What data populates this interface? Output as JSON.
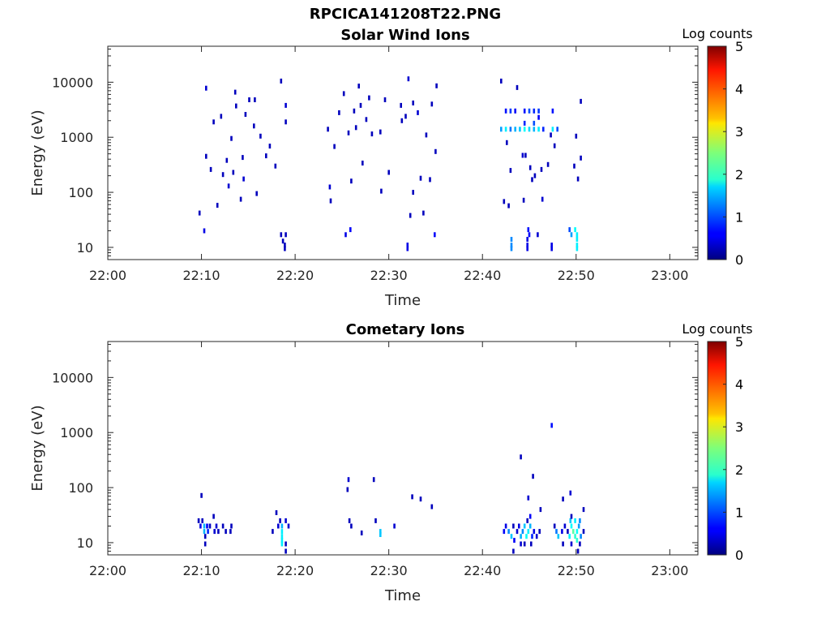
{
  "figure_title": "RPCICA141208T22.PNG",
  "chart_data": [
    {
      "type": "heatmap",
      "title": "Solar Wind Ions",
      "xlabel": "Time",
      "ylabel": "Energy (eV)",
      "x_scale": "time",
      "y_scale": "log",
      "x_range": [
        "22:00",
        "23:03"
      ],
      "y_range": [
        6,
        45000
      ],
      "x_ticks": [
        "22:00",
        "22:10",
        "22:20",
        "22:30",
        "22:40",
        "22:50",
        "23:00"
      ],
      "y_ticks": [
        "10",
        "100",
        "1000",
        "10000"
      ],
      "colorbar": {
        "label": "Log counts",
        "range": [
          0,
          5
        ],
        "ticks": [
          "0",
          "1",
          "2",
          "3",
          "4",
          "5"
        ],
        "colormap": "jet"
      },
      "points": [
        [
          "22:09.8",
          42,
          0.3
        ],
        [
          "22:10.5",
          7800,
          0.4
        ],
        [
          "22:10.5",
          450,
          0.3
        ],
        [
          "22:11.0",
          260,
          0.3
        ],
        [
          "22:11.3",
          1900,
          0.3
        ],
        [
          "22:11.7",
          58,
          0.3
        ],
        [
          "22:12.1",
          2400,
          0.3
        ],
        [
          "22:12.3",
          210,
          0.3
        ],
        [
          "22:12.7",
          380,
          0.3
        ],
        [
          "22:12.9",
          130,
          0.4
        ],
        [
          "22:13.2",
          950,
          0.3
        ],
        [
          "22:13.4",
          230,
          0.3
        ],
        [
          "22:13.6",
          6600,
          0.3
        ],
        [
          "22:13.7",
          3700,
          0.3
        ],
        [
          "22:14.2",
          75,
          0.3
        ],
        [
          "22:14.4",
          430,
          0.3
        ],
        [
          "22:14.5",
          175,
          0.4
        ],
        [
          "22:14.7",
          2600,
          0.3
        ],
        [
          "22:15.1",
          4800,
          0.3
        ],
        [
          "22:15.6",
          1600,
          0.3
        ],
        [
          "22:15.7",
          4800,
          0.3
        ],
        [
          "22:15.9",
          95,
          0.3
        ],
        [
          "22:16.3",
          1050,
          0.3
        ],
        [
          "22:16.9",
          460,
          0.3
        ],
        [
          "22:17.3",
          690,
          0.3
        ],
        [
          "22:17.9",
          300,
          0.3
        ],
        [
          "22:18.5",
          10500,
          0.3
        ],
        [
          "22:19.0",
          3800,
          0.4
        ],
        [
          "22:19.0",
          1900,
          0.3
        ],
        [
          "22:23.5",
          1400,
          0.3
        ],
        [
          "22:23.7",
          125,
          0.4
        ],
        [
          "22:23.8",
          70,
          0.3
        ],
        [
          "22:24.2",
          680,
          0.3
        ],
        [
          "22:24.7",
          2800,
          0.3
        ],
        [
          "22:25.2",
          6200,
          0.3
        ],
        [
          "22:25.7",
          1200,
          0.3
        ],
        [
          "22:26.0",
          160,
          0.3
        ],
        [
          "22:26.3",
          3000,
          0.3
        ],
        [
          "22:26.5",
          1500,
          0.3
        ],
        [
          "22:26.8",
          8500,
          0.3
        ],
        [
          "22:27.0",
          3800,
          0.3
        ],
        [
          "22:27.2",
          340,
          0.3
        ],
        [
          "22:27.6",
          2100,
          0.3
        ],
        [
          "22:27.9",
          5200,
          0.3
        ],
        [
          "22:28.2",
          1150,
          0.3
        ],
        [
          "22:29.1",
          1250,
          0.3
        ],
        [
          "22:29.2",
          105,
          0.3
        ],
        [
          "22:29.6",
          4800,
          0.3
        ],
        [
          "22:30.0",
          230,
          0.3
        ],
        [
          "22:31.3",
          3800,
          0.3
        ],
        [
          "22:31.4",
          2000,
          0.3
        ],
        [
          "22:31.8",
          2400,
          0.3
        ],
        [
          "22:32.1",
          11500,
          0.4
        ],
        [
          "22:32.3",
          38,
          0.3
        ],
        [
          "22:32.6",
          4200,
          0.3
        ],
        [
          "22:32.6",
          100,
          0.3
        ],
        [
          "22:33.1",
          2800,
          0.4
        ],
        [
          "22:33.4",
          180,
          0.3
        ],
        [
          "22:33.7",
          42,
          0.3
        ],
        [
          "22:34.0",
          1100,
          0.3
        ],
        [
          "22:34.4",
          170,
          0.3
        ],
        [
          "22:34.6",
          4000,
          0.3
        ],
        [
          "22:35.0",
          550,
          0.3
        ],
        [
          "22:35.1",
          8600,
          0.3
        ],
        [
          "22:42.0",
          10500,
          0.3
        ],
        [
          "22:42.3",
          68,
          0.3
        ],
        [
          "22:42.6",
          800,
          0.3
        ],
        [
          "22:42.8",
          57,
          0.3
        ],
        [
          "22:43.0",
          250,
          0.3
        ],
        [
          "22:43.7",
          8000,
          0.3
        ],
        [
          "22:44.3",
          470,
          0.4
        ],
        [
          "22:44.4",
          72,
          0.3
        ],
        [
          "22:44.6",
          470,
          0.3
        ],
        [
          "22:45.1",
          280,
          0.3
        ],
        [
          "22:45.3",
          170,
          0.3
        ],
        [
          "22:45.6",
          200,
          0.3
        ],
        [
          "22:46.3",
          260,
          0.3
        ],
        [
          "22:46.4",
          75,
          0.4
        ],
        [
          "22:47.0",
          320,
          0.3
        ],
        [
          "22:47.3",
          1100,
          0.3
        ],
        [
          "22:47.7",
          700,
          0.3
        ],
        [
          "22:49.8",
          300,
          0.3
        ],
        [
          "22:50.0",
          1050,
          0.3
        ],
        [
          "22:50.2",
          175,
          0.3
        ],
        [
          "22:50.5",
          420,
          0.3
        ],
        [
          "22:50.5",
          4500,
          0.3
        ],
        [
          "22:42.5",
          3000,
          0.7
        ],
        [
          "22:43.0",
          3000,
          0.9
        ],
        [
          "22:43.5",
          3000,
          0.6
        ],
        [
          "22:44.5",
          3000,
          0.7
        ],
        [
          "22:45.0",
          3000,
          1.0
        ],
        [
          "22:45.5",
          3000,
          0.8
        ],
        [
          "22:46.0",
          3000,
          0.9
        ],
        [
          "22:47.5",
          3000,
          0.7
        ],
        [
          "22:42.0",
          1400,
          1.4
        ],
        [
          "22:42.5",
          1400,
          1.8
        ],
        [
          "22:43.0",
          1400,
          1.2
        ],
        [
          "22:43.5",
          1400,
          1.5
        ],
        [
          "22:44.0",
          1400,
          1.6
        ],
        [
          "22:44.5",
          1400,
          1.9
        ],
        [
          "22:45.0",
          1400,
          1.7
        ],
        [
          "22:45.5",
          1400,
          1.5
        ],
        [
          "22:46.0",
          1400,
          1.8
        ],
        [
          "22:46.5",
          1400,
          0.8
        ],
        [
          "22:47.5",
          1400,
          1.8
        ],
        [
          "22:48.0",
          1400,
          1.0
        ],
        [
          "22:44.5",
          1800,
          0.8
        ],
        [
          "22:45.5",
          1800,
          1.0
        ],
        [
          "22:46.0",
          2300,
          0.6
        ],
        [
          "22:10.3",
          20,
          0.5
        ],
        [
          "22:18.5",
          17,
          0.3
        ],
        [
          "22:19.0",
          17,
          0.3
        ],
        [
          "22:18.7",
          13,
          0.3
        ],
        [
          "22:18.9",
          11,
          0.3
        ],
        [
          "22:18.9",
          9.5,
          0.3
        ],
        [
          "22:25.4",
          17,
          0.5
        ],
        [
          "22:25.9",
          21,
          0.6
        ],
        [
          "22:32.0",
          11,
          0.5
        ],
        [
          "22:32.0",
          9.5,
          0.5
        ],
        [
          "22:34.9",
          17,
          0.6
        ],
        [
          "22:43.1",
          14,
          1.3
        ],
        [
          "22:43.1",
          11,
          1.3
        ],
        [
          "22:43.1",
          9.5,
          1.3
        ],
        [
          "22:44.9",
          21,
          0.7
        ],
        [
          "22:45.0",
          17,
          0.6
        ],
        [
          "22:44.8",
          14,
          0.5
        ],
        [
          "22:44.8",
          11,
          0.5
        ],
        [
          "22:44.8",
          9.5,
          0.5
        ],
        [
          "22:45.9",
          17,
          0.4
        ],
        [
          "22:47.4",
          11,
          0.5
        ],
        [
          "22:47.4",
          9.5,
          0.5
        ],
        [
          "22:49.3",
          21,
          1.0
        ],
        [
          "22:49.5",
          17,
          1.4
        ],
        [
          "22:49.9",
          21,
          1.9
        ],
        [
          "22:50.1",
          17,
          1.8
        ],
        [
          "22:50.1",
          14,
          1.8
        ],
        [
          "22:50.1",
          11,
          1.8
        ],
        [
          "22:50.1",
          9.5,
          1.8
        ]
      ]
    },
    {
      "type": "heatmap",
      "title": "Cometary Ions",
      "xlabel": "Time",
      "ylabel": "Energy (eV)",
      "x_scale": "time",
      "y_scale": "log",
      "x_range": [
        "22:00",
        "23:03"
      ],
      "y_range": [
        6,
        45000
      ],
      "x_ticks": [
        "22:00",
        "22:10",
        "22:20",
        "22:30",
        "22:40",
        "22:50",
        "23:00"
      ],
      "y_ticks": [
        "10",
        "100",
        "1000",
        "10000"
      ],
      "colorbar": {
        "label": "Log counts",
        "range": [
          0,
          5
        ],
        "ticks": [
          "0",
          "1",
          "2",
          "3",
          "4",
          "5"
        ],
        "colormap": "jet"
      },
      "points": [
        [
          "22:10.0",
          72,
          0.3
        ],
        [
          "22:18.0",
          35,
          0.3
        ],
        [
          "22:25.6",
          92,
          0.3
        ],
        [
          "22:25.7",
          140,
          0.4
        ],
        [
          "22:28.4",
          140,
          0.3
        ],
        [
          "22:32.5",
          68,
          0.3
        ],
        [
          "22:33.4",
          62,
          0.3
        ],
        [
          "22:34.6",
          45,
          0.3
        ],
        [
          "22:44.1",
          360,
          0.3
        ],
        [
          "22:44.9",
          65,
          0.4
        ],
        [
          "22:45.4",
          160,
          0.3
        ],
        [
          "22:46.2",
          40,
          0.3
        ],
        [
          "22:47.4",
          1350,
          0.7
        ],
        [
          "22:48.6",
          62,
          0.3
        ],
        [
          "22:49.4",
          80,
          0.4
        ],
        [
          "22:50.8",
          40,
          0.3
        ],
        [
          "22:09.7",
          25,
          0.3
        ],
        [
          "22:10.1",
          25,
          0.3
        ],
        [
          "22:09.9",
          20,
          0.5
        ],
        [
          "22:10.3",
          20,
          1.5
        ],
        [
          "22:10.6",
          20,
          0.6
        ],
        [
          "22:10.9",
          20,
          0.3
        ],
        [
          "22:10.3",
          16,
          1.5
        ],
        [
          "22:10.7",
          16,
          0.8
        ],
        [
          "22:11.4",
          16,
          0.4
        ],
        [
          "22:11.8",
          16,
          0.3
        ],
        [
          "22:12.6",
          16,
          0.3
        ],
        [
          "22:11.6",
          20,
          0.4
        ],
        [
          "22:12.3",
          20,
          0.3
        ],
        [
          "22:13.2",
          20,
          0.3
        ],
        [
          "22:10.4",
          13,
          0.3
        ],
        [
          "22:11.3",
          30,
          0.3
        ],
        [
          "22:10.4",
          9.5,
          0.3
        ],
        [
          "22:13.1",
          16,
          0.3
        ],
        [
          "22:17.6",
          16,
          0.3
        ],
        [
          "22:18.2",
          20,
          0.4
        ],
        [
          "22:18.6",
          20,
          1.5
        ],
        [
          "22:18.6",
          16,
          1.8
        ],
        [
          "22:18.6",
          13,
          1.8
        ],
        [
          "22:18.6",
          11,
          1.8
        ],
        [
          "22:18.6",
          9.5,
          1.8
        ],
        [
          "22:18.4",
          25,
          0.3
        ],
        [
          "22:19.0",
          25,
          0.4
        ],
        [
          "22:19.0",
          9.5,
          0.3
        ],
        [
          "22:19.0",
          7,
          0.3
        ],
        [
          "22:19.3",
          20,
          0.4
        ],
        [
          "22:25.8",
          25,
          0.3
        ],
        [
          "22:26.0",
          20,
          0.3
        ],
        [
          "22:27.1",
          15,
          0.3
        ],
        [
          "22:28.6",
          25,
          0.3
        ],
        [
          "22:29.1",
          16,
          1.6
        ],
        [
          "22:29.1",
          14,
          1.6
        ],
        [
          "22:30.6",
          20,
          0.4
        ],
        [
          "22:42.3",
          16,
          0.6
        ],
        [
          "22:42.5",
          20,
          0.5
        ],
        [
          "22:42.8",
          16,
          1.3
        ],
        [
          "22:43.1",
          13,
          1.6
        ],
        [
          "22:43.3",
          20,
          0.3
        ],
        [
          "22:43.4",
          11,
          0.6
        ],
        [
          "22:43.7",
          16,
          0.4
        ],
        [
          "22:43.9",
          20,
          0.5
        ],
        [
          "22:44.1",
          13,
          1.5
        ],
        [
          "22:44.3",
          16,
          1.3
        ],
        [
          "22:44.5",
          20,
          1.6
        ],
        [
          "22:44.7",
          13,
          1.9
        ],
        [
          "22:44.9",
          16,
          1.8
        ],
        [
          "22:45.1",
          20,
          1.5
        ],
        [
          "22:45.3",
          13,
          0.8
        ],
        [
          "22:45.5",
          16,
          0.5
        ],
        [
          "22:45.8",
          13,
          0.4
        ],
        [
          "22:46.1",
          16,
          0.3
        ],
        [
          "22:44.1",
          9.5,
          0.4
        ],
        [
          "22:44.5",
          9.5,
          0.3
        ],
        [
          "22:45.2",
          9.5,
          0.3
        ],
        [
          "22:43.3",
          7,
          0.3
        ],
        [
          "22:44.8",
          25,
          0.3
        ],
        [
          "22:45.1",
          30,
          0.6
        ],
        [
          "22:47.7",
          20,
          0.3
        ],
        [
          "22:47.9",
          16,
          1.2
        ],
        [
          "22:48.1",
          13,
          1.6
        ],
        [
          "22:48.5",
          16,
          0.5
        ],
        [
          "22:48.8",
          20,
          0.4
        ],
        [
          "22:49.1",
          16,
          0.3
        ],
        [
          "22:49.3",
          13,
          1.8
        ],
        [
          "22:49.5",
          20,
          1.9
        ],
        [
          "22:49.7",
          16,
          2.3
        ],
        [
          "22:49.9",
          13,
          2.1
        ],
        [
          "22:50.1",
          16,
          1.9
        ],
        [
          "22:50.1",
          11,
          2.1
        ],
        [
          "22:50.3",
          20,
          1.4
        ],
        [
          "22:50.5",
          13,
          1.3
        ],
        [
          "22:50.8",
          16,
          0.3
        ],
        [
          "22:49.4",
          25,
          1.6
        ],
        [
          "22:49.9",
          25,
          1.8
        ],
        [
          "22:50.4",
          25,
          1.3
        ],
        [
          "22:50.4",
          9.5,
          0.3
        ],
        [
          "22:48.6",
          9.5,
          0.3
        ],
        [
          "22:49.5",
          9.5,
          0.4
        ],
        [
          "22:50.2",
          7,
          0.3
        ],
        [
          "22:49.5",
          30,
          0.3
        ]
      ]
    }
  ]
}
